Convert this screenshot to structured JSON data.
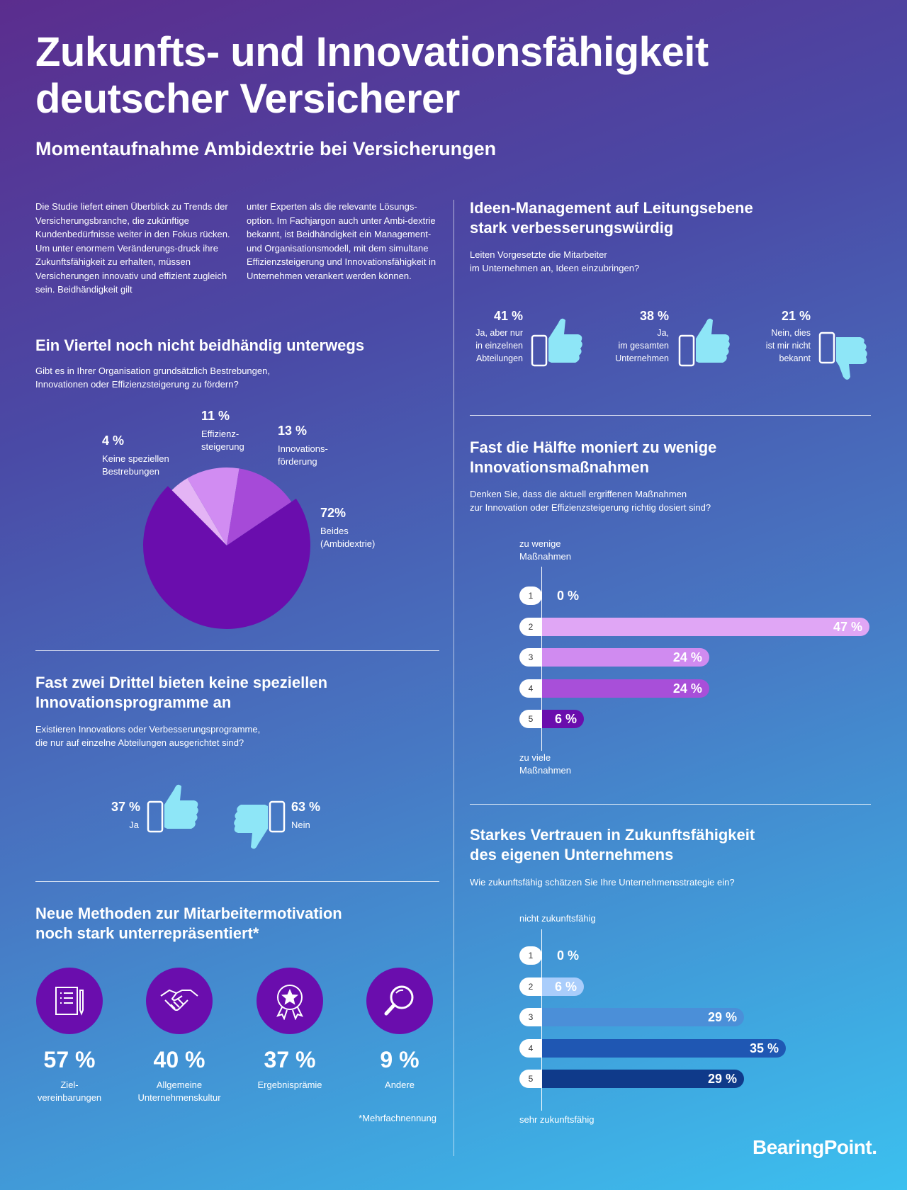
{
  "header": {
    "title_line1": "Zukunfts- und Innovationsfähigkeit",
    "title_line2": "deutscher Versicherer",
    "subtitle": "Momentaufnahme Ambidextrie bei Versicherungen"
  },
  "intro": {
    "col1": "Die Studie liefert einen Überblick zu Trends der Versicherungsbranche, die zukünftige Kundenbedürfnisse weiter in den Fokus rücken. Um unter enormem Veränderungs-druck ihre Zukunftsfähigkeit zu erhalten, müssen Versicherungen innovativ und effizient zugleich sein. Beidhändigkeit gilt",
    "col2": "unter Experten als die relevante Lösungs-option. Im Fachjargon auch unter Ambi-dextrie bekannt, ist Beidhändigkeit ein Management- und Organisationsmodell, mit dem simultane Effizienzsteigerung und Innovationsfähigkeit in Unternehmen verankert werden können."
  },
  "section_pie": {
    "title": "Ein Viertel noch nicht beidhändig unterwegs",
    "question_line1": "Gibt es in Ihrer Organisation grundsätzlich Bestrebungen,",
    "question_line2": "Innovationen oder Effizienzsteigerung zu fördern?"
  },
  "section_programs": {
    "title_line1": "Fast zwei Drittel bieten keine speziellen",
    "title_line2": "Innovationsprogramme an",
    "question_line1": "Existieren Innovations oder Verbesserungsprogramme,",
    "question_line2": "die nur auf einzelne Abteilungen ausgerichtet sind?",
    "yes_pct": "37 %",
    "yes_label": "Ja",
    "no_pct": "63 %",
    "no_label": "Nein"
  },
  "section_methods": {
    "title_line1": "Neue Methoden zur Mitarbeitermotivation",
    "title_line2": "noch stark unterrepräsentiert*",
    "items": [
      {
        "pct": "57 %",
        "label_line1": "Ziel-",
        "label_line2": "vereinbarungen",
        "icon": "document-pen-icon"
      },
      {
        "pct": "40 %",
        "label_line1": "Allgemeine",
        "label_line2": "Unternehmenskultur",
        "icon": "handshake-icon"
      },
      {
        "pct": "37 %",
        "label_line1": "Ergebnisprämie",
        "label_line2": "",
        "icon": "award-star-icon"
      },
      {
        "pct": "9 %",
        "label_line1": "Andere",
        "label_line2": "",
        "icon": "magnifier-icon"
      }
    ],
    "footnote": "*Mehrfachnennung"
  },
  "section_ideas": {
    "title_line1": "Ideen-Management auf Leitungsebene",
    "title_line2": "stark verbesserungswürdig",
    "question_line1": "Leiten Vorgesetzte die Mitarbeiter",
    "question_line2": "im Unternehmen an, Ideen einzubringen?",
    "items": [
      {
        "pct": "41 %",
        "l1": "Ja, aber nur",
        "l2": "in einzelnen",
        "l3": "Abteilungen",
        "icon": "thumbs-up-icon"
      },
      {
        "pct": "38 %",
        "l1": "Ja,",
        "l2": "im gesamten",
        "l3": "Unternehmen",
        "icon": "thumbs-up-icon"
      },
      {
        "pct": "21 %",
        "l1": "Nein, dies",
        "l2": "ist mir nicht",
        "l3": "bekannt",
        "icon": "thumbs-down-icon"
      }
    ]
  },
  "section_measures": {
    "title_line1": "Fast die Hälfte moniert zu wenige",
    "title_line2": "Innovationsmaßnahmen",
    "question_line1": "Denken Sie, dass die aktuell ergriffenen Maßnahmen",
    "question_line2": "zur Innovation oder Effizienzsteigerung richtig dosiert sind?",
    "top_label_line1": "zu wenige",
    "top_label_line2": "Maßnahmen",
    "bottom_label_line1": "zu viele",
    "bottom_label_line2": "Maßnahmen"
  },
  "section_future": {
    "title_line1": "Starkes Vertrauen in Zukunftsfähigkeit",
    "title_line2": "des eigenen Unternehmens",
    "question": "Wie zukunftsfähig schätzen Sie Ihre Unternehmensstrategie ein?",
    "top_label": "nicht zukunftsfähig",
    "bottom_label": "sehr zukunftsfähig"
  },
  "brand": {
    "logo": "BearingPoint."
  },
  "chart_data": [
    {
      "type": "pie",
      "title": "Ein Viertel noch nicht beidhändig unterwegs",
      "slices": [
        {
          "label": "Beides (Ambidextrie)",
          "value": 72,
          "display": "72%",
          "color": "#6a0dad"
        },
        {
          "label": "Keine speziellen Bestrebungen",
          "value": 4,
          "display": "4 %",
          "color": "#e4b4f5"
        },
        {
          "label": "Effizienzsteigerung",
          "value": 11,
          "display": "11 %",
          "color": "#d18cf2"
        },
        {
          "label": "Innovationsförderung",
          "value": 13,
          "display": "13 %",
          "color": "#a64ad8"
        }
      ]
    },
    {
      "type": "bar",
      "title": "Fast die Hälfte moniert zu wenige Innovationsmaßnahmen",
      "categories": [
        "1",
        "2",
        "3",
        "4",
        "5"
      ],
      "values": [
        0,
        47,
        24,
        24,
        6
      ],
      "display": [
        "0 %",
        "47 %",
        "24 %",
        "24 %",
        "6 %"
      ],
      "colors": [
        "#e6b3f7",
        "#e0a6f5",
        "#d08bf0",
        "#a84fd9",
        "#6a0dad"
      ],
      "xlim": [
        0,
        47
      ]
    },
    {
      "type": "bar",
      "title": "Starkes Vertrauen in Zukunftsfähigkeit des eigenen Unternehmens",
      "categories": [
        "1",
        "2",
        "3",
        "4",
        "5"
      ],
      "values": [
        0,
        6,
        29,
        35,
        29
      ],
      "display": [
        "0 %",
        "6 %",
        "29 %",
        "35 %",
        "29 %"
      ],
      "colors": [
        "#bfe0ff",
        "#a9cdfb",
        "#4b8fd8",
        "#1f57b3",
        "#0f3a8a"
      ],
      "xlim": [
        0,
        47
      ]
    }
  ]
}
